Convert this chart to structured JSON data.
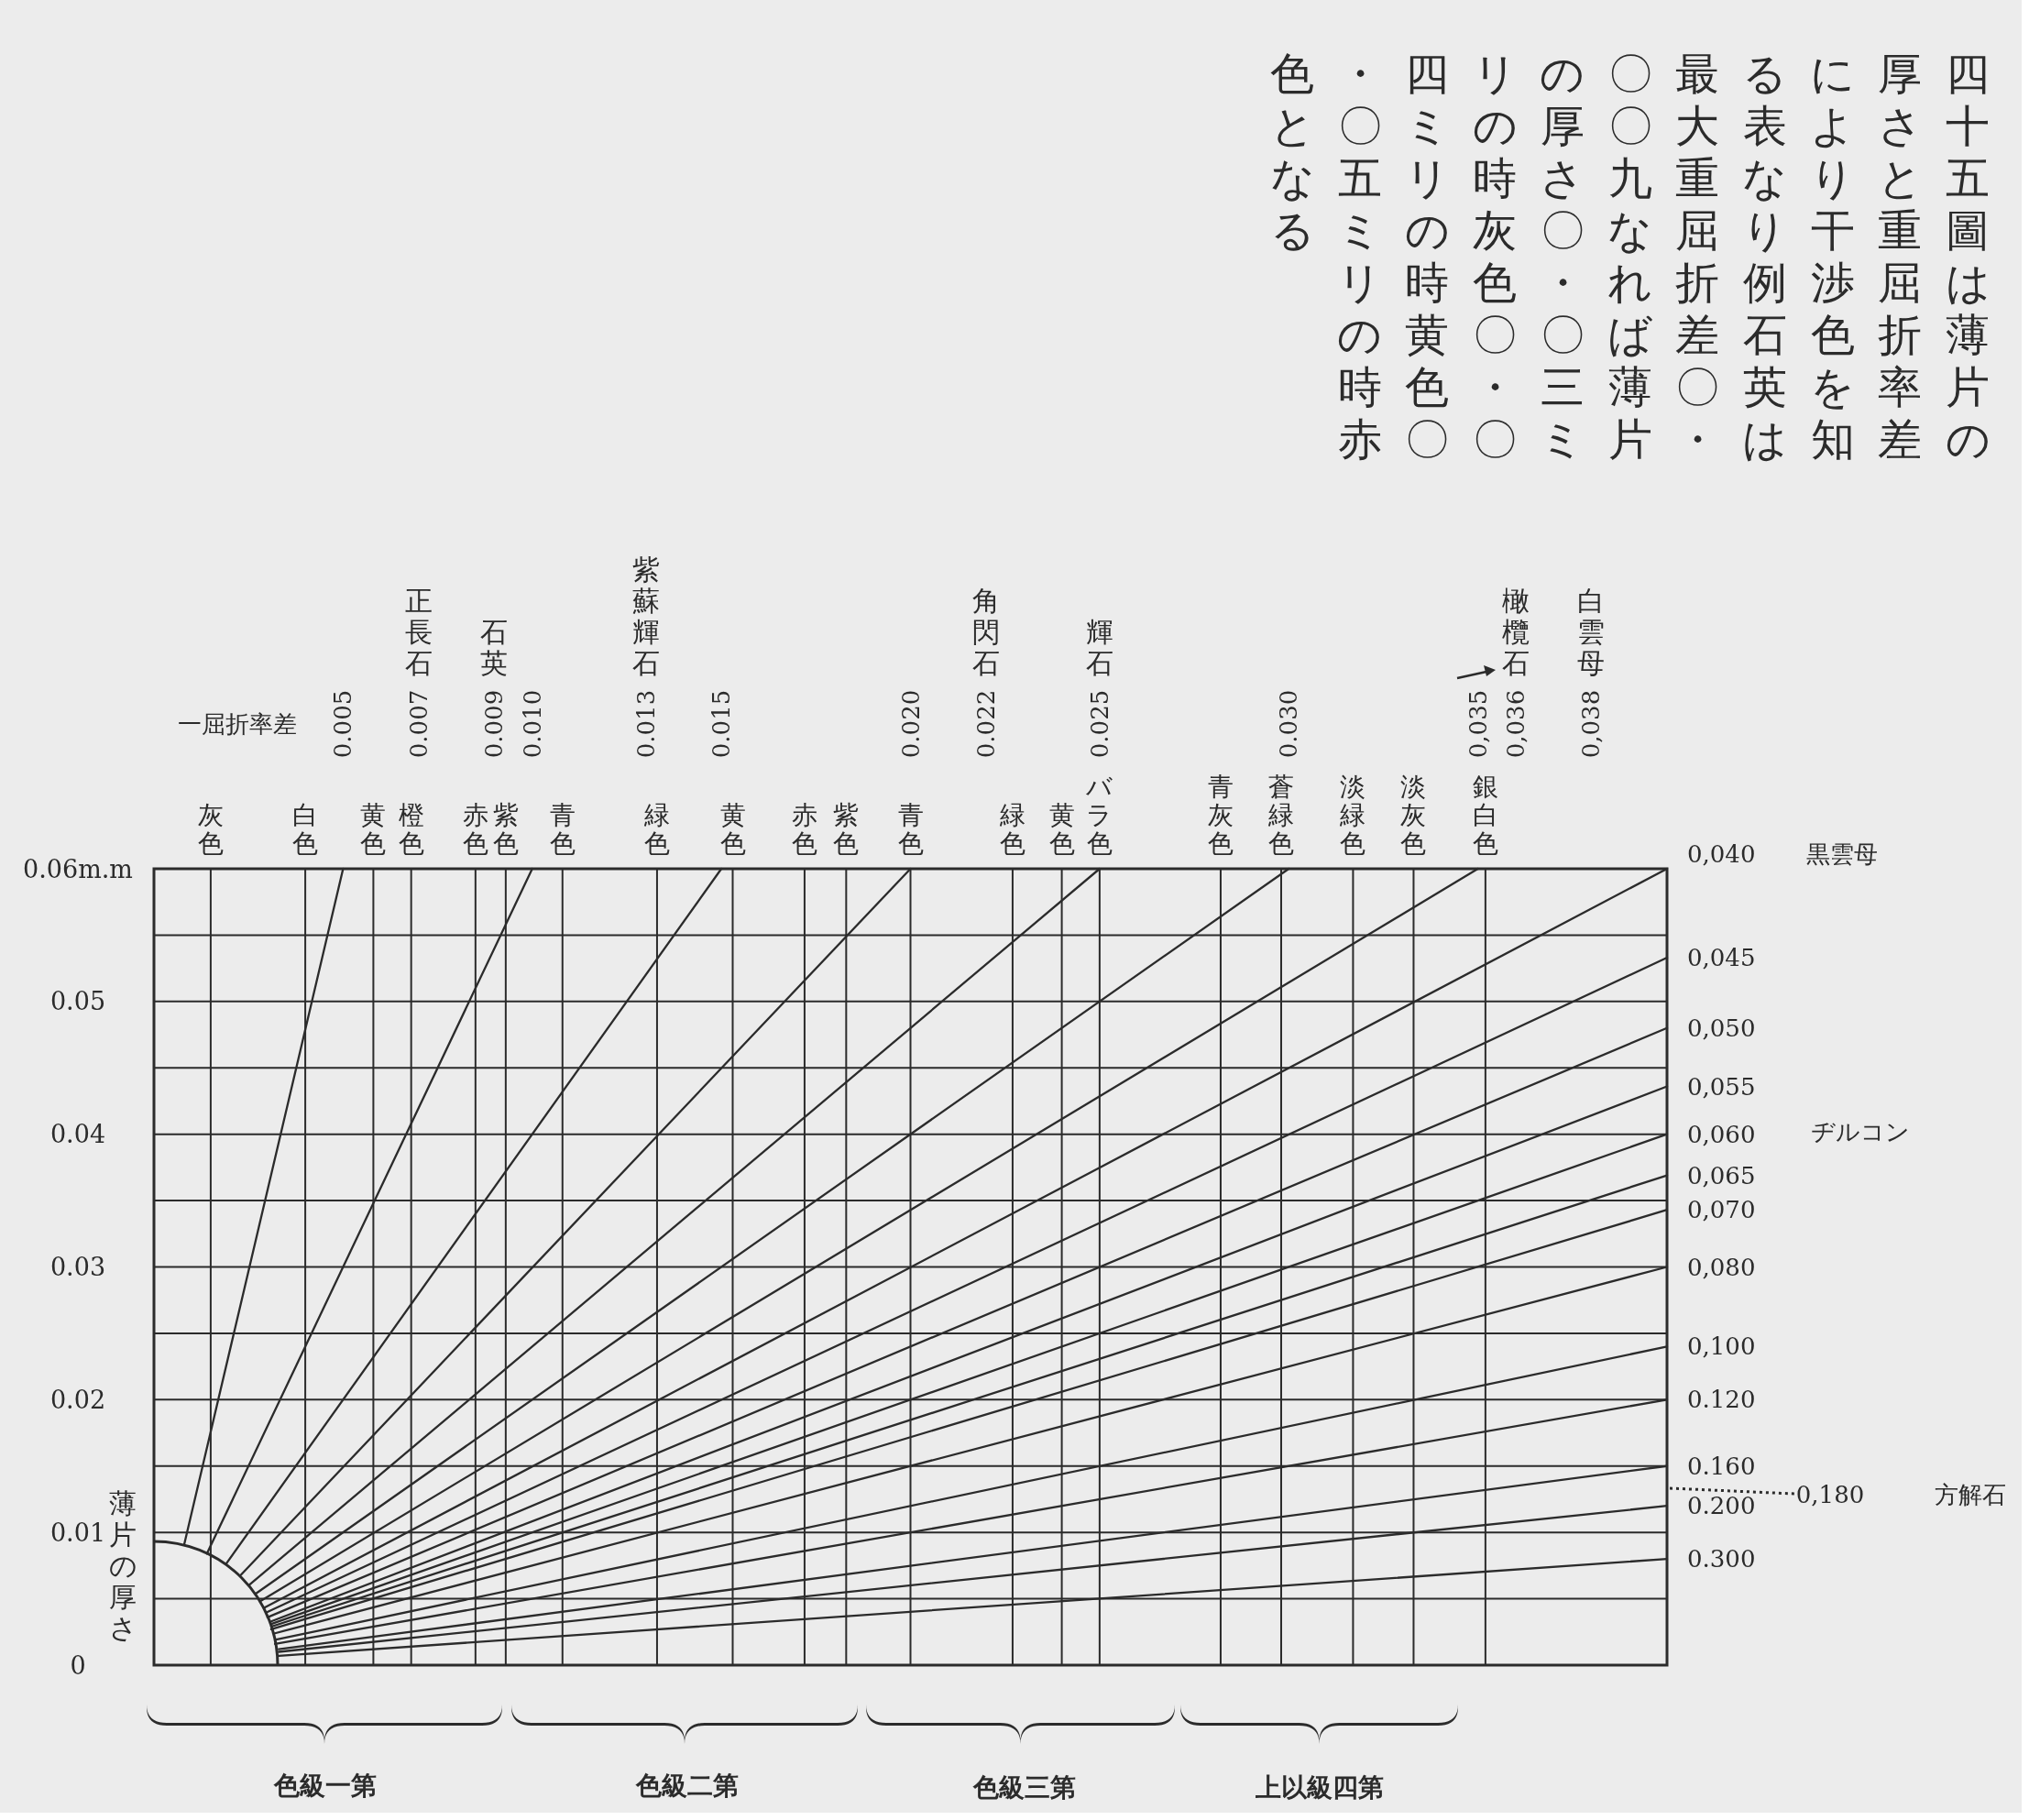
{
  "chart_data": {
    "type": "line",
    "title": "四十五圖は薄片の厚さと重屈折率差により干渉色を知る表なり例石英は最大重屈折差〇・〇〇九なれば薄片の厚さ〇・〇三ミリの時灰色〇・〇四ミリの時黄色〇・〇五ミリの時赤色となる",
    "xlabel": "一屈折率差",
    "ylabel": "薄片の厚さ",
    "xlim": [
      0,
      0.04
    ],
    "xticks": [
      0.005,
      0.007,
      0.009,
      {
        "value": 0.01,
        "label": "0.010"
      },
      0.013,
      0.015,
      {
        "value": 0.02,
        "label": "0.020"
      },
      0.022,
      0.025,
      {
        "value": 0.03,
        "label": "0.030"
      },
      {
        "value": 0.035,
        "label": "0,035"
      },
      {
        "value": 0.036,
        "label": "0,036"
      },
      {
        "value": 0.038,
        "label": "0,038"
      }
    ],
    "ylim": [
      0,
      0.06
    ],
    "yticks": [
      0,
      {
        "value": 0.005,
        "label": null
      },
      0.01,
      {
        "value": 0.015,
        "label": null
      },
      0.02,
      {
        "value": 0.025,
        "label": null
      },
      0.03,
      {
        "value": 0.035,
        "label": null
      },
      0.04,
      {
        "value": 0.045,
        "label": null
      },
      0.05,
      {
        "value": 0.055,
        "label": null
      },
      {
        "value": 0.06,
        "label": "0.06m.m"
      }
    ],
    "grid": "y",
    "ref_lines": [
      {
        "axis": "x",
        "value": 0.0015,
        "label": "灰色"
      },
      {
        "axis": "x",
        "value": 0.004,
        "label": "白色"
      },
      {
        "axis": "x",
        "value": 0.0058,
        "label": "黄色"
      },
      {
        "axis": "x",
        "value": 0.0068,
        "label": "橙色"
      },
      {
        "axis": "x",
        "value": 0.0085,
        "label": "赤色"
      },
      {
        "axis": "x",
        "value": 0.0093,
        "label": "紫色"
      },
      {
        "axis": "x",
        "value": 0.0108,
        "label": "青色"
      },
      {
        "axis": "x",
        "value": 0.0133,
        "label": "緑色"
      },
      {
        "axis": "x",
        "value": 0.0153,
        "label": "黄色"
      },
      {
        "axis": "x",
        "value": 0.0172,
        "label": "赤色"
      },
      {
        "axis": "x",
        "value": 0.0183,
        "label": "紫色"
      },
      {
        "axis": "x",
        "value": 0.02,
        "label": "青色"
      },
      {
        "axis": "x",
        "value": 0.0227,
        "label": "緑色"
      },
      {
        "axis": "x",
        "value": 0.024,
        "label": "黄色"
      },
      {
        "axis": "x",
        "value": 0.025,
        "label": "バラ色"
      },
      {
        "axis": "x",
        "value": 0.0282,
        "label": "青灰色"
      },
      {
        "axis": "x",
        "value": 0.0298,
        "label": "蒼緑色"
      },
      {
        "axis": "x",
        "value": 0.0317,
        "label": "淡緑色"
      },
      {
        "axis": "x",
        "value": 0.0333,
        "label": "淡灰色"
      },
      {
        "axis": "x",
        "value": 0.0352,
        "label": "銀白色"
      }
    ],
    "series": [
      {
        "color": "#2b2b2b",
        "x": [
          0.0008,
          0.005
        ],
        "values": [
          0.0091,
          0.06
        ]
      },
      {
        "color": "#2b2b2b",
        "x": [
          0.0014,
          0.01
        ],
        "values": [
          0.0084,
          0.06
        ]
      },
      {
        "color": "#2b2b2b",
        "x": [
          0.0019,
          0.015
        ],
        "values": [
          0.0076,
          0.06
        ]
      },
      {
        "color": "#2b2b2b",
        "x": [
          0.0023,
          0.02
        ],
        "values": [
          0.0068,
          0.06
        ]
      },
      {
        "color": "#2b2b2b",
        "x": [
          0.0025,
          0.025
        ],
        "values": [
          0.006,
          0.06
        ]
      },
      {
        "color": "#2b2b2b",
        "x": [
          0.0027,
          0.03
        ],
        "values": [
          0.0054,
          0.06
        ]
      },
      {
        "color": "#2b2b2b",
        "x": [
          0.0028,
          0.035
        ],
        "values": [
          0.0048,
          0.06
        ]
      },
      {
        "name": "0,040",
        "color": "#2b2b2b",
        "x": [
          0.0029,
          0.04
        ],
        "values": [
          0.0043,
          0.06
        ]
      },
      {
        "name": "0,045",
        "color": "#2b2b2b",
        "x": [
          0.003,
          0.04
        ],
        "values": [
          0.004,
          0.0533
        ]
      },
      {
        "name": "0,050",
        "color": "#2b2b2b",
        "x": [
          0.003,
          0.04
        ],
        "values": [
          0.0036,
          0.048
        ]
      },
      {
        "name": "0,055",
        "color": "#2b2b2b",
        "x": [
          0.0031,
          0.04
        ],
        "values": [
          0.0033,
          0.0436
        ]
      },
      {
        "name": "0,060",
        "color": "#2b2b2b",
        "x": [
          0.0031,
          0.04
        ],
        "values": [
          0.0031,
          0.04
        ]
      },
      {
        "name": "0,065",
        "color": "#2b2b2b",
        "x": [
          0.0031,
          0.04
        ],
        "values": [
          0.0029,
          0.0369
        ]
      },
      {
        "name": "0,070",
        "color": "#2b2b2b",
        "x": [
          0.0031,
          0.04
        ],
        "values": [
          0.0027,
          0.0343
        ]
      },
      {
        "name": "0,080",
        "color": "#2b2b2b",
        "x": [
          0.0032,
          0.04
        ],
        "values": [
          0.0024,
          0.03
        ]
      },
      {
        "name": "0,100",
        "color": "#2b2b2b",
        "x": [
          0.0032,
          0.04
        ],
        "values": [
          0.0019,
          0.024
        ]
      },
      {
        "name": "0.120",
        "color": "#2b2b2b",
        "x": [
          0.0032,
          0.04
        ],
        "values": [
          0.0016,
          0.02
        ]
      },
      {
        "name": "0.160",
        "color": "#2b2b2b",
        "x": [
          0.0033,
          0.04
        ],
        "values": [
          0.0012,
          0.015
        ]
      },
      {
        "name": "0.200",
        "color": "#2b2b2b",
        "x": [
          0.0033,
          0.04
        ],
        "values": [
          0.001,
          0.012
        ]
      },
      {
        "name": "0.300",
        "color": "#2b2b2b",
        "x": [
          0.0033,
          0.04
        ],
        "values": [
          0.0007,
          0.008
        ]
      }
    ],
    "annotations": [
      "正長石",
      "石英",
      "紫蘇輝石",
      "角閃石",
      "輝石",
      "橄欖石",
      "白雲母",
      "黒雲母",
      "ヂルコン",
      "0,180",
      "方解石",
      "色級一第",
      "色級二第",
      "色級三第",
      "上以級四第"
    ]
  }
}
